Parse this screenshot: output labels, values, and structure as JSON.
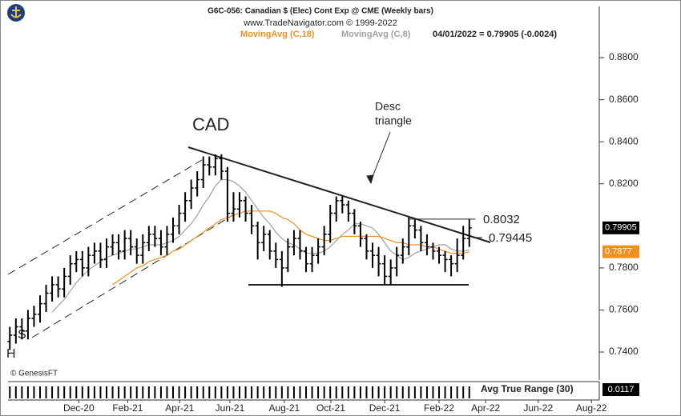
{
  "chart_data": {
    "type": "ohlc",
    "title": "G6C-056:  Canadian $ (Elec) Cont Exp @ CME  (Weekly bars)",
    "subtitle": "www.TradeNavigator.com © 1999-2022",
    "header_value": "04/01/2022 = 0.79905 (-0.0024)",
    "credit": "© GenesisFT",
    "annotations": {
      "cad": "CAD",
      "desc_triangle": [
        "Desc",
        "triangle"
      ],
      "s": "S",
      "h": "H"
    },
    "levels": [
      0.8032,
      0.79445
    ],
    "categories": [
      null,
      null,
      null,
      null,
      null,
      null,
      null,
      null,
      null,
      null,
      null,
      null,
      null,
      null,
      null,
      null,
      null,
      null,
      null,
      null,
      null,
      null,
      null,
      null,
      null,
      null,
      null,
      null,
      null,
      null,
      null,
      null,
      null,
      null,
      null,
      null,
      null,
      null,
      null,
      null,
      null,
      null,
      null,
      null,
      null,
      null,
      null,
      null,
      null,
      null,
      null,
      null,
      null,
      null,
      null,
      null,
      null,
      null,
      null,
      null,
      null,
      null,
      null,
      null,
      null,
      null,
      null,
      null,
      null,
      null,
      null,
      null,
      null,
      null,
      null,
      null,
      null
    ],
    "open": [
      0.745,
      0.748,
      0.752,
      0.75,
      0.756,
      0.758,
      0.763,
      0.768,
      0.772,
      0.77,
      0.776,
      0.782,
      0.784,
      0.78,
      0.786,
      0.788,
      0.784,
      0.79,
      0.792,
      0.788,
      0.794,
      0.79,
      0.786,
      0.792,
      0.796,
      0.794,
      0.79,
      0.796,
      0.8,
      0.806,
      0.812,
      0.818,
      0.822,
      0.829,
      0.828,
      0.832,
      0.826,
      0.806,
      0.808,
      0.812,
      0.806,
      0.8,
      0.792,
      0.796,
      0.788,
      0.784,
      0.78,
      0.79,
      0.794,
      0.788,
      0.782,
      0.786,
      0.79,
      0.796,
      0.806,
      0.812,
      0.81,
      0.806,
      0.8,
      0.794,
      0.788,
      0.786,
      0.782,
      0.776,
      0.78,
      0.786,
      0.79,
      0.8,
      0.798,
      0.792,
      0.79,
      0.788,
      0.786,
      0.784,
      0.782,
      0.786,
      0.794
    ],
    "high": [
      0.752,
      0.756,
      0.756,
      0.76,
      0.762,
      0.767,
      0.772,
      0.776,
      0.776,
      0.78,
      0.786,
      0.788,
      0.788,
      0.79,
      0.792,
      0.792,
      0.794,
      0.796,
      0.796,
      0.798,
      0.798,
      0.794,
      0.796,
      0.8,
      0.8,
      0.798,
      0.8,
      0.804,
      0.81,
      0.816,
      0.822,
      0.826,
      0.833,
      0.833,
      0.834,
      0.834,
      0.828,
      0.816,
      0.816,
      0.814,
      0.81,
      0.802,
      0.8,
      0.798,
      0.792,
      0.788,
      0.794,
      0.798,
      0.798,
      0.79,
      0.79,
      0.794,
      0.8,
      0.81,
      0.814,
      0.814,
      0.812,
      0.808,
      0.802,
      0.796,
      0.792,
      0.79,
      0.786,
      0.784,
      0.79,
      0.794,
      0.804,
      0.803,
      0.8,
      0.796,
      0.792,
      0.79,
      0.788,
      0.786,
      0.794,
      0.8,
      0.8032
    ],
    "low": [
      0.741,
      0.744,
      0.746,
      0.746,
      0.752,
      0.754,
      0.759,
      0.764,
      0.766,
      0.766,
      0.772,
      0.778,
      0.776,
      0.776,
      0.782,
      0.78,
      0.78,
      0.786,
      0.784,
      0.784,
      0.786,
      0.782,
      0.782,
      0.788,
      0.79,
      0.786,
      0.786,
      0.792,
      0.796,
      0.802,
      0.808,
      0.814,
      0.818,
      0.824,
      0.824,
      0.822,
      0.802,
      0.802,
      0.804,
      0.802,
      0.796,
      0.784,
      0.788,
      0.784,
      0.78,
      0.771,
      0.778,
      0.786,
      0.784,
      0.778,
      0.778,
      0.782,
      0.786,
      0.792,
      0.802,
      0.806,
      0.802,
      0.796,
      0.79,
      0.784,
      0.78,
      0.776,
      0.772,
      0.772,
      0.776,
      0.782,
      0.786,
      0.794,
      0.788,
      0.786,
      0.784,
      0.782,
      0.778,
      0.776,
      0.778,
      0.784,
      0.79
    ],
    "close": [
      0.748,
      0.752,
      0.75,
      0.756,
      0.758,
      0.763,
      0.768,
      0.772,
      0.77,
      0.776,
      0.782,
      0.784,
      0.78,
      0.786,
      0.788,
      0.784,
      0.79,
      0.792,
      0.788,
      0.794,
      0.79,
      0.786,
      0.792,
      0.796,
      0.794,
      0.79,
      0.796,
      0.8,
      0.806,
      0.812,
      0.818,
      0.822,
      0.829,
      0.828,
      0.832,
      0.826,
      0.806,
      0.808,
      0.812,
      0.806,
      0.8,
      0.792,
      0.796,
      0.788,
      0.784,
      0.78,
      0.79,
      0.794,
      0.788,
      0.782,
      0.786,
      0.79,
      0.796,
      0.806,
      0.812,
      0.81,
      0.806,
      0.8,
      0.794,
      0.788,
      0.786,
      0.782,
      0.776,
      0.78,
      0.786,
      0.79,
      0.8,
      0.798,
      0.792,
      0.79,
      0.788,
      0.786,
      0.784,
      0.782,
      0.786,
      0.794,
      0.79905
    ],
    "series": [
      {
        "name": "MovingAvg (C,18)",
        "color": "#f0901e",
        "values": [
          null,
          null,
          null,
          null,
          null,
          null,
          null,
          null,
          null,
          null,
          null,
          null,
          null,
          null,
          null,
          null,
          null,
          0.772,
          0.774,
          0.776,
          0.778,
          0.78,
          0.781,
          0.783,
          0.784,
          0.785,
          0.786,
          0.788,
          0.789,
          0.791,
          0.793,
          0.795,
          0.797,
          0.799,
          0.801,
          0.803,
          0.804,
          0.805,
          0.806,
          0.807,
          0.807,
          0.807,
          0.807,
          0.807,
          0.806,
          0.804,
          0.803,
          0.801,
          0.798,
          0.796,
          0.795,
          0.794,
          0.793,
          0.793,
          0.794,
          0.795,
          0.795,
          0.795,
          0.795,
          0.795,
          0.795,
          0.795,
          0.794,
          0.793,
          0.792,
          0.792,
          0.791,
          0.791,
          0.791,
          0.79,
          0.79,
          0.789,
          0.788,
          0.787,
          0.787,
          0.787,
          0.7877
        ]
      },
      {
        "name": "MovingAvg (C,8)",
        "color": "#a0a0a0",
        "values": [
          null,
          null,
          null,
          null,
          null,
          null,
          null,
          0.759,
          0.762,
          0.765,
          0.769,
          0.773,
          0.776,
          0.779,
          0.781,
          0.783,
          0.785,
          0.786,
          0.787,
          0.788,
          0.789,
          0.789,
          0.79,
          0.791,
          0.791,
          0.791,
          0.792,
          0.793,
          0.795,
          0.798,
          0.801,
          0.805,
          0.81,
          0.814,
          0.819,
          0.822,
          0.822,
          0.821,
          0.819,
          0.816,
          0.812,
          0.808,
          0.804,
          0.801,
          0.797,
          0.794,
          0.792,
          0.791,
          0.789,
          0.787,
          0.787,
          0.787,
          0.788,
          0.79,
          0.793,
          0.796,
          0.798,
          0.801,
          0.801,
          0.8,
          0.799,
          0.796,
          0.792,
          0.788,
          0.786,
          0.784,
          0.785,
          0.787,
          0.788,
          0.789,
          0.79,
          0.791,
          0.791,
          0.789,
          0.788,
          0.788,
          0.7886
        ]
      }
    ],
    "ylim": [
      0.7267,
      0.8922
    ],
    "yticks": [
      {
        "value": 0.74,
        "label": "0.7400"
      },
      {
        "value": 0.76,
        "label": "0.7600"
      },
      {
        "value": 0.78,
        "label": "0.7800"
      },
      {
        "value": 0.82,
        "label": "0.8200"
      },
      {
        "value": 0.84,
        "label": "0.8400"
      },
      {
        "value": 0.86,
        "label": "0.8600"
      },
      {
        "value": 0.88,
        "label": "0.8800"
      }
    ],
    "xlim": [
      -0.3,
      97.5
    ],
    "xticks": [
      {
        "value": 11.4,
        "label": "Dec-20"
      },
      {
        "value": 19.5,
        "label": "Feb-21"
      },
      {
        "value": 28.1,
        "label": "Apr-21"
      },
      {
        "value": 36.4,
        "label": "Jun-21"
      },
      {
        "value": 45.4,
        "label": "Aug-21"
      },
      {
        "value": 53.1,
        "label": "Oct-21"
      },
      {
        "value": 62.0,
        "label": "Dec-21"
      },
      {
        "value": 71.0,
        "label": "Feb-22"
      },
      {
        "value": 78.7,
        "label": "Apr-22"
      },
      {
        "value": 87.4,
        "label": "Jun-22"
      },
      {
        "value": 96.2,
        "label": "Aug-22"
      }
    ],
    "indicator": {
      "name": "Avg True Range (30)",
      "value": 0.0117
    }
  }
}
